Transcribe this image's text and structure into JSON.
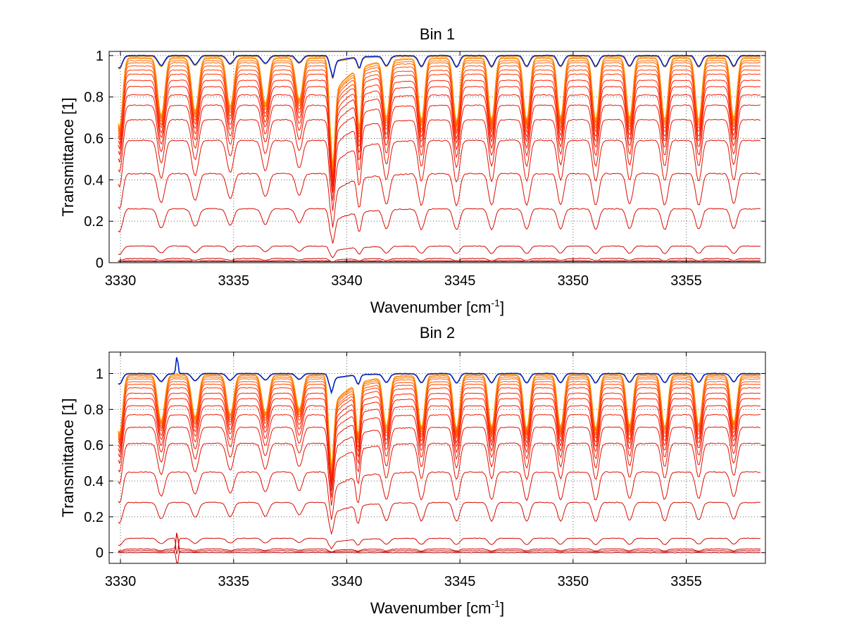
{
  "chart_data": [
    {
      "type": "line",
      "title": "Bin 1",
      "xlabel": "Wavenumber [cm",
      "xlabel_sup": "-1",
      "xlabel_suffix": "]",
      "ylabel": "Transmittance [1]",
      "xlim": [
        3329.5,
        3358.5
      ],
      "ylim": [
        0,
        1.02
      ],
      "xticks": [
        3330,
        3335,
        3340,
        3345,
        3350,
        3355
      ],
      "xtick_labels": [
        "3330",
        "3335",
        "3340",
        "3345",
        "3350",
        "3355"
      ],
      "yticks": [
        0,
        0.2,
        0.4,
        0.6,
        0.8,
        1
      ],
      "ytick_labels": [
        "0",
        "0.2",
        "0.4",
        "0.6",
        "0.8",
        "1"
      ],
      "grid": "dotted",
      "baselines": [
        0.0,
        0.01,
        0.02,
        0.08,
        0.26,
        0.43,
        0.59,
        0.69,
        0.76,
        0.81,
        0.85,
        0.88,
        0.91,
        0.93,
        0.95,
        0.965,
        0.975,
        0.985,
        0.99,
        0.995,
        1.0
      ],
      "lines": [
        {
          "center": 3339.35,
          "width": 0.14,
          "depth": 0.98
        },
        {
          "center": 3340.55,
          "width": 0.12,
          "depth": 0.6
        },
        {
          "center": 3329.95,
          "width": 0.18,
          "depth": 0.7
        },
        {
          "center": 3331.8,
          "width": 0.2,
          "depth": 0.55
        },
        {
          "center": 3333.3,
          "width": 0.2,
          "depth": 0.5
        },
        {
          "center": 3334.85,
          "width": 0.2,
          "depth": 0.45
        },
        {
          "center": 3336.4,
          "width": 0.2,
          "depth": 0.42
        },
        {
          "center": 3337.9,
          "width": 0.2,
          "depth": 0.38
        },
        {
          "center": 3341.75,
          "width": 0.18,
          "depth": 0.55
        },
        {
          "center": 3343.3,
          "width": 0.18,
          "depth": 0.6
        },
        {
          "center": 3344.85,
          "width": 0.18,
          "depth": 0.62
        },
        {
          "center": 3346.4,
          "width": 0.18,
          "depth": 0.6
        },
        {
          "center": 3347.95,
          "width": 0.18,
          "depth": 0.6
        },
        {
          "center": 3349.45,
          "width": 0.18,
          "depth": 0.58
        },
        {
          "center": 3351.0,
          "width": 0.18,
          "depth": 0.6
        },
        {
          "center": 3352.5,
          "width": 0.18,
          "depth": 0.58
        },
        {
          "center": 3354.05,
          "width": 0.18,
          "depth": 0.6
        },
        {
          "center": 3355.55,
          "width": 0.18,
          "depth": 0.6
        },
        {
          "center": 3357.1,
          "width": 0.18,
          "depth": 0.58
        }
      ],
      "spike": null
    },
    {
      "type": "line",
      "title": "Bin 2",
      "xlabel": "Wavenumber [cm",
      "xlabel_sup": "-1",
      "xlabel_suffix": "]",
      "ylabel": "Transmittance [1]",
      "xlim": [
        3329.5,
        3358.5
      ],
      "ylim": [
        -0.06,
        1.12
      ],
      "xticks": [
        3330,
        3335,
        3340,
        3345,
        3350,
        3355
      ],
      "xtick_labels": [
        "3330",
        "3335",
        "3340",
        "3345",
        "3350",
        "3355"
      ],
      "yticks": [
        0,
        0.2,
        0.4,
        0.6,
        0.8,
        1
      ],
      "ytick_labels": [
        "0",
        "0.2",
        "0.4",
        "0.6",
        "0.8",
        "1"
      ],
      "grid": "dotted",
      "baselines": [
        0.0,
        0.01,
        0.02,
        0.08,
        0.28,
        0.45,
        0.61,
        0.7,
        0.77,
        0.82,
        0.86,
        0.89,
        0.92,
        0.94,
        0.955,
        0.97,
        0.98,
        0.988,
        0.994,
        0.998,
        1.0
      ],
      "lines": [
        {
          "center": 3339.3,
          "width": 0.14,
          "depth": 0.95
        },
        {
          "center": 3340.5,
          "width": 0.12,
          "depth": 0.6
        },
        {
          "center": 3329.95,
          "width": 0.18,
          "depth": 0.68
        },
        {
          "center": 3331.8,
          "width": 0.2,
          "depth": 0.5
        },
        {
          "center": 3333.3,
          "width": 0.2,
          "depth": 0.45
        },
        {
          "center": 3334.85,
          "width": 0.2,
          "depth": 0.42
        },
        {
          "center": 3336.4,
          "width": 0.2,
          "depth": 0.4
        },
        {
          "center": 3337.9,
          "width": 0.2,
          "depth": 0.36
        },
        {
          "center": 3341.75,
          "width": 0.18,
          "depth": 0.55
        },
        {
          "center": 3343.3,
          "width": 0.18,
          "depth": 0.58
        },
        {
          "center": 3344.85,
          "width": 0.18,
          "depth": 0.6
        },
        {
          "center": 3346.4,
          "width": 0.18,
          "depth": 0.58
        },
        {
          "center": 3347.95,
          "width": 0.18,
          "depth": 0.6
        },
        {
          "center": 3349.45,
          "width": 0.18,
          "depth": 0.58
        },
        {
          "center": 3351.0,
          "width": 0.18,
          "depth": 0.6
        },
        {
          "center": 3352.5,
          "width": 0.18,
          "depth": 0.56
        },
        {
          "center": 3354.05,
          "width": 0.18,
          "depth": 0.58
        },
        {
          "center": 3355.55,
          "width": 0.18,
          "depth": 0.55
        },
        {
          "center": 3357.1,
          "width": 0.18,
          "depth": 0.52
        }
      ],
      "spike": {
        "center": 3332.5,
        "width": 0.06,
        "amplitude": 0.2
      }
    }
  ],
  "colors": {
    "line_dark": "#c00000",
    "line_mid": "#ff2000",
    "line_light": "#ffb000",
    "line_top": "#0020c0",
    "axis": "#000000",
    "grid": "#666666"
  }
}
